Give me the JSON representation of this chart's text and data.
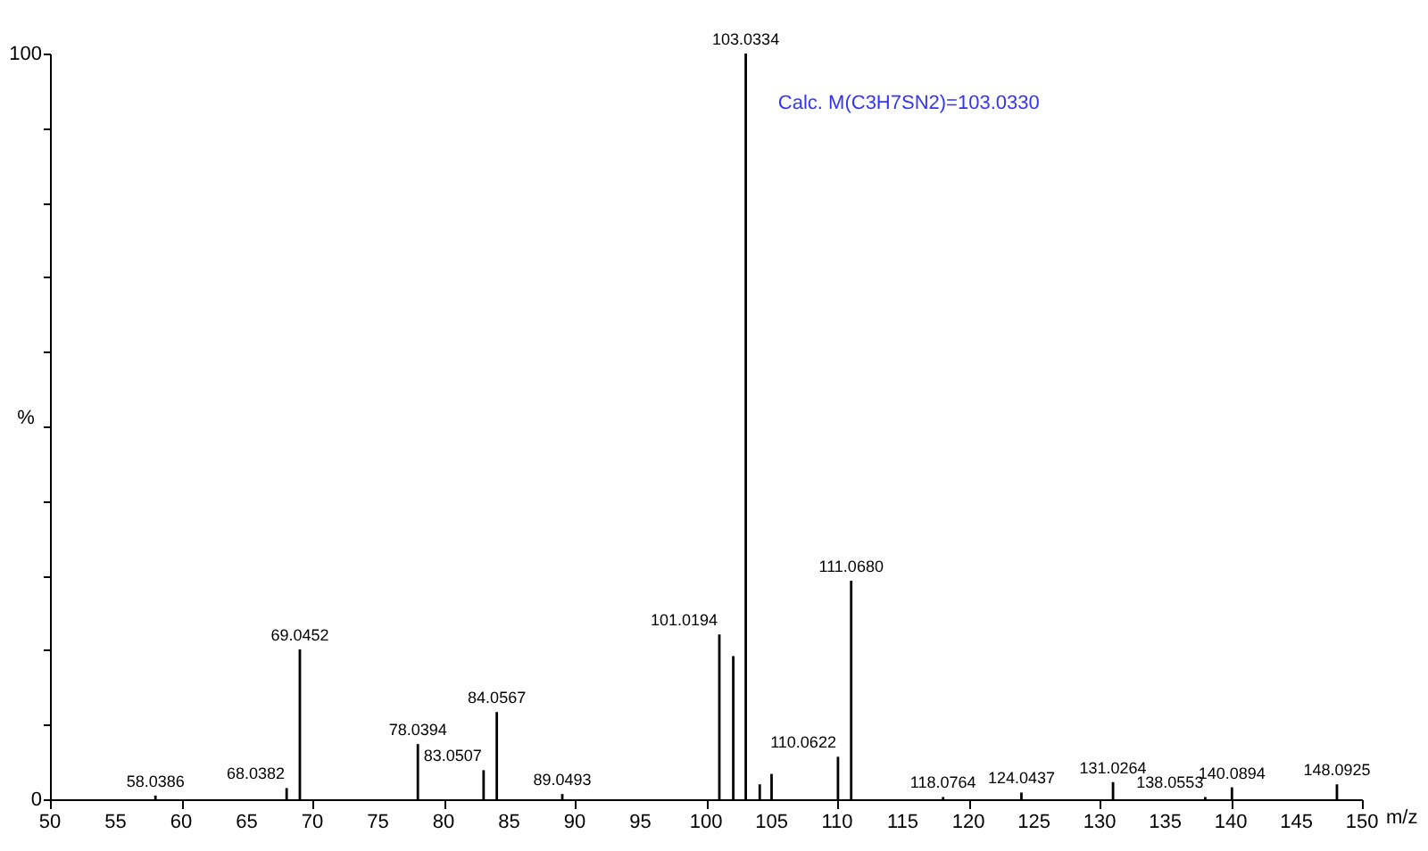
{
  "chart_data": {
    "type": "bar",
    "xlabel": "m/z",
    "ylabel": "%",
    "x": [
      58.0386,
      68.0382,
      69.0452,
      78.0394,
      83.0507,
      84.0567,
      89.0493,
      101.0194,
      102.08,
      103.0334,
      104.1,
      105.0,
      110.0622,
      111.068,
      118.0764,
      124.0437,
      131.0264,
      138.0553,
      140.0894,
      148.0925
    ],
    "series": [
      {
        "color": "#000000",
        "values": [
          0.5,
          1.5,
          20.1,
          7.4,
          3.9,
          11.7,
          0.7,
          22.1,
          19.2,
          100,
          2.0,
          3.4,
          5.7,
          29.3,
          0.3,
          0.9,
          2.3,
          0.3,
          1.6,
          2.0
        ]
      }
    ],
    "xlim": [
      50,
      150
    ],
    "xticks": [
      50,
      55,
      60,
      65,
      70,
      75,
      80,
      85,
      90,
      95,
      100,
      105,
      110,
      115,
      120,
      125,
      130,
      135,
      140,
      145,
      150
    ],
    "ylim": [
      0,
      100
    ],
    "yticks": [
      0,
      {
        "value": 10,
        "label": null
      },
      {
        "value": 20,
        "label": null
      },
      {
        "value": 30,
        "label": null
      },
      {
        "value": 40,
        "label": null
      },
      {
        "value": 50,
        "label": null
      },
      {
        "value": 60,
        "label": null
      },
      {
        "value": 70,
        "label": null
      },
      {
        "value": 80,
        "label": null
      },
      {
        "value": 90,
        "label": null
      },
      100
    ],
    "annotations": [
      {
        "text": "58.0386",
        "x": 58.0386,
        "y": 0.5
      },
      {
        "text": "68.0382",
        "x": 68.0382,
        "y": 1.5
      },
      {
        "text": "69.0452",
        "x": 69.0452,
        "y": 20.1
      },
      {
        "text": "78.0394",
        "x": 78.0394,
        "y": 7.4
      },
      {
        "text": "83.0507",
        "x": 83.0507,
        "y": 3.9
      },
      {
        "text": "84.0567",
        "x": 84.0567,
        "y": 11.7
      },
      {
        "text": "89.0493",
        "x": 89.0493,
        "y": 0.7
      },
      {
        "text": "101.0194",
        "x": 101.0194,
        "y": 22.1
      },
      {
        "text": "103.0334",
        "x": 103.0334,
        "y": 100
      },
      {
        "text": "110.0622",
        "x": 110.0622,
        "y": 5.7
      },
      {
        "text": "111.0680",
        "x": 111.068,
        "y": 29.3
      },
      {
        "text": "118.0764",
        "x": 118.0764,
        "y": 0.3
      },
      {
        "text": "124.0437",
        "x": 124.0437,
        "y": 0.9
      },
      {
        "text": "131.0264",
        "x": 131.0264,
        "y": 2.3
      },
      {
        "text": "138.0553",
        "x": 138.0553,
        "y": 0.3
      },
      {
        "text": "140.0894",
        "x": 140.0894,
        "y": 1.6
      },
      {
        "text": "148.0925",
        "x": 148.0925,
        "y": 2.0
      },
      "Calc. M(C3H7SN2)=103.0330"
    ],
    "grid": false,
    "legend": false
  }
}
